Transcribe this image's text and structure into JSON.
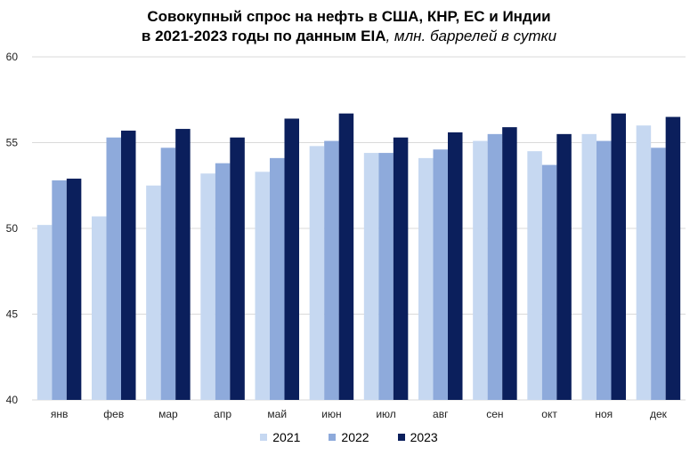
{
  "chart_data": {
    "type": "bar",
    "title_line1": "Совокупный спрос на нефть в США, КНР, ЕС и Индии",
    "title_line2_bold": "в 2021-2023 годы по данным EIA",
    "title_line2_italic": ", млн. баррелей в сутки",
    "categories": [
      "янв",
      "фев",
      "мар",
      "апр",
      "май",
      "июн",
      "июл",
      "авг",
      "сен",
      "окт",
      "ноя",
      "дек"
    ],
    "ylim": [
      40,
      60
    ],
    "yticks": [
      40,
      45,
      50,
      55,
      60
    ],
    "grid": true,
    "legend_position": "bottom",
    "series": [
      {
        "name": "2021",
        "color": "#c6d8f1",
        "values": [
          50.2,
          50.7,
          52.5,
          53.2,
          53.3,
          54.8,
          54.4,
          54.1,
          55.1,
          54.5,
          55.5,
          56.0
        ]
      },
      {
        "name": "2022",
        "color": "#8eaadb",
        "values": [
          52.8,
          55.3,
          54.7,
          53.8,
          54.1,
          55.1,
          54.4,
          54.6,
          55.5,
          53.7,
          55.1,
          54.7
        ]
      },
      {
        "name": "2023",
        "color": "#0b1f5c",
        "values": [
          52.9,
          55.7,
          55.8,
          55.3,
          56.4,
          56.7,
          55.3,
          55.6,
          55.9,
          55.5,
          56.7,
          56.5
        ]
      }
    ]
  }
}
